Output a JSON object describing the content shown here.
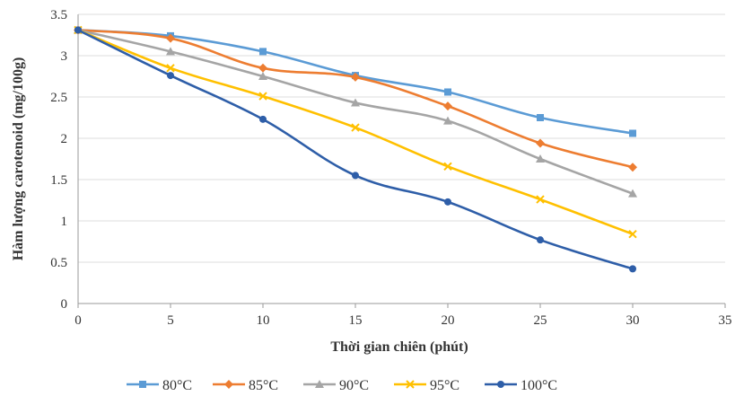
{
  "chart_data": {
    "type": "line",
    "title": "",
    "xlabel": "Thời gian chiên (phút)",
    "ylabel": "Hàm lượng carotenoid (mg/100g)",
    "xlim": [
      0,
      35
    ],
    "ylim": [
      0,
      3.5
    ],
    "x_ticks": [
      "0",
      "5",
      "10",
      "15",
      "20",
      "25",
      "30",
      "35"
    ],
    "y_ticks": [
      "0",
      "0.5",
      "1",
      "1.5",
      "2",
      "2.5",
      "3",
      "3.5"
    ],
    "grid": true,
    "legend_position": "bottom",
    "x": [
      0,
      5,
      10,
      15,
      20,
      25,
      30
    ],
    "series": [
      {
        "name": "80°C",
        "color": "#5B9BD5",
        "marker": "square",
        "values": [
          3.31,
          3.24,
          3.05,
          2.76,
          2.56,
          2.25,
          2.06
        ]
      },
      {
        "name": "85°C",
        "color": "#ED7D31",
        "marker": "diamond",
        "values": [
          3.31,
          3.21,
          2.85,
          2.74,
          2.39,
          1.94,
          1.65
        ]
      },
      {
        "name": "90°C",
        "color": "#A5A5A5",
        "marker": "triangle",
        "values": [
          3.31,
          3.05,
          2.75,
          2.43,
          2.21,
          1.75,
          1.33
        ]
      },
      {
        "name": "95°C",
        "color": "#FFC000",
        "marker": "x",
        "values": [
          3.31,
          2.85,
          2.51,
          2.13,
          1.66,
          1.26,
          0.84
        ]
      },
      {
        "name": "100°C",
        "color": "#2E5EA8",
        "marker": "circle",
        "values": [
          3.31,
          2.76,
          2.23,
          1.55,
          1.23,
          0.77,
          0.42
        ]
      }
    ]
  }
}
